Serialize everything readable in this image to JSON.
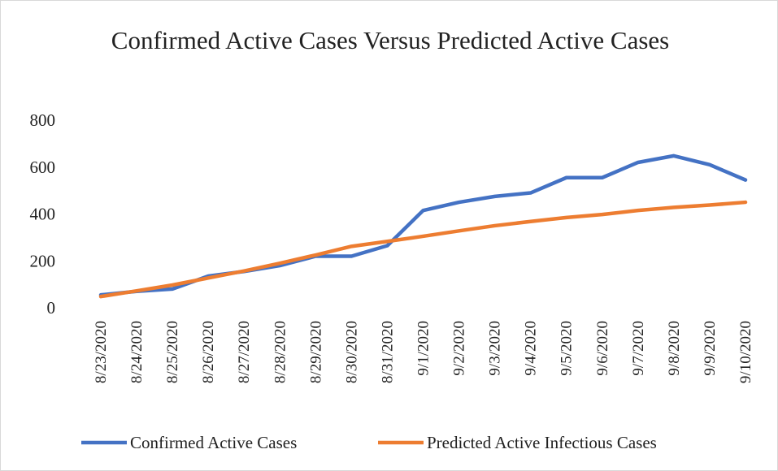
{
  "chart_data": {
    "type": "line",
    "title": "Confirmed Active Cases Versus Predicted Active Cases",
    "categories": [
      "8/23/2020",
      "8/24/2020",
      "8/25/2020",
      "8/26/2020",
      "8/27/2020",
      "8/28/2020",
      "8/29/2020",
      "8/30/2020",
      "8/31/2020",
      "9/1/2020",
      "9/2/2020",
      "9/3/2020",
      "9/4/2020",
      "9/5/2020",
      "9/6/2020",
      "9/7/2020",
      "9/8/2020",
      "9/9/2020",
      "9/10/2020"
    ],
    "series": [
      {
        "name": "Confirmed Active Cases",
        "color": "#4472c4",
        "values": [
          55,
          70,
          80,
          135,
          155,
          180,
          220,
          220,
          265,
          415,
          450,
          475,
          490,
          555,
          555,
          620,
          648,
          610,
          545
        ]
      },
      {
        "name": "Predicted Active Infectious Cases",
        "color": "#ed7d31",
        "values": [
          48,
          72,
          97,
          127,
          157,
          190,
          225,
          262,
          283,
          305,
          328,
          350,
          368,
          385,
          398,
          415,
          428,
          438,
          450
        ]
      }
    ],
    "ylim": [
      0,
      800
    ],
    "yticks": [
      0,
      200,
      400,
      600,
      800
    ],
    "grid": false,
    "legend": "bottom"
  }
}
